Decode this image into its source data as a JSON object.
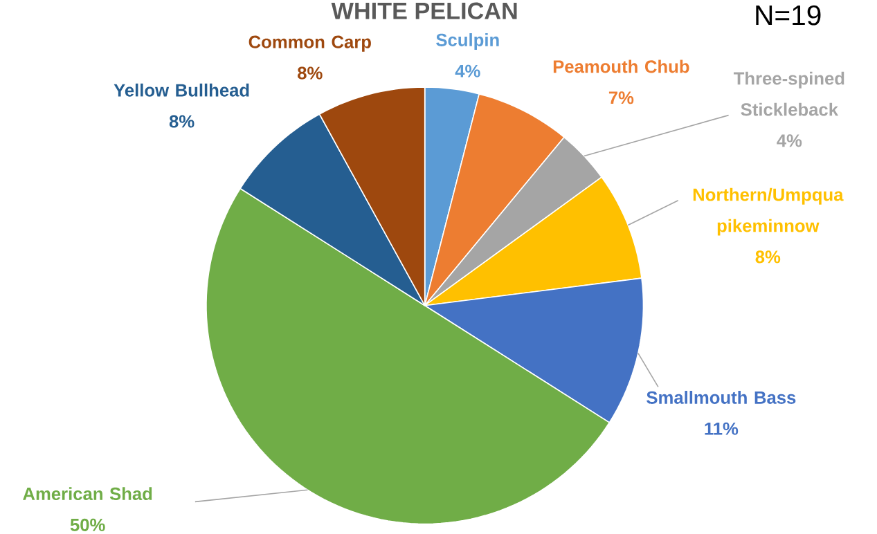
{
  "chart_data": {
    "type": "pie",
    "title": "WHITE PELICAN",
    "categories": [
      "Sculpin",
      "Peamouth Chub",
      "Three-spined Stickleback",
      "Northern/Umpqua pikeminnow",
      "Smallmouth Bass",
      "American Shad",
      "Yellow Bullhead",
      "Common Carp"
    ],
    "values": [
      4,
      7,
      4,
      8,
      11,
      50,
      8,
      8
    ],
    "value_labels": [
      "4%",
      "7%",
      "4%",
      "8%",
      "11%",
      "50%",
      "8%",
      "8%"
    ],
    "colors": [
      "#5b9bd5",
      "#ed7d31",
      "#a5a5a5",
      "#ffc000",
      "#4472c4",
      "#70ad47",
      "#255e91",
      "#9e480e"
    ],
    "annotations": [
      "N=19"
    ]
  }
}
